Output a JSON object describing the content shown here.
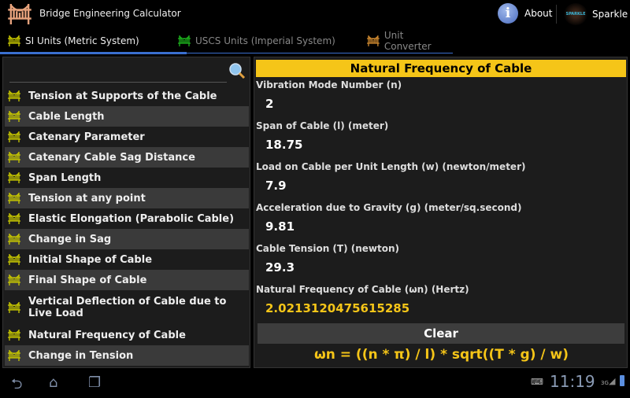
{
  "app": {
    "title": "Bridge Engineering Calculator",
    "about": "About",
    "sparkle": "Sparkle",
    "sparkle_logo": "SPARKLE"
  },
  "tabs": [
    {
      "label": "SI Units (Metric System)",
      "active": true,
      "icon_color": "#c8c800"
    },
    {
      "label": "USCS Units (Imperial System)",
      "active": false,
      "icon_color": "#1db31d"
    },
    {
      "label": "Unit Converter",
      "active": false,
      "icon_color": "#d08a30"
    }
  ],
  "search": {
    "placeholder": ""
  },
  "list": [
    "Tension at Supports of the Cable",
    "Cable Length",
    "Catenary Parameter",
    "Catenary Cable Sag Distance",
    "Span Length",
    "Tension at any point",
    "Elastic Elongation (Parabolic Cable)",
    "Change in Sag",
    "Initial Shape of Cable",
    "Final Shape of Cable",
    "Vertical Deflection of Cable due to Live Load",
    "Natural Frequency of Cable",
    "Change in Tension"
  ],
  "calc": {
    "title": "Natural Frequency of Cable",
    "fields": [
      {
        "label": "Vibration Mode Number (n)",
        "value": "2"
      },
      {
        "label": "Span of Cable (l) (meter)",
        "value": "18.75"
      },
      {
        "label": "Load on Cable per Unit Length (w) (newton/meter)",
        "value": "7.9"
      },
      {
        "label": "Acceleration due to Gravity (g) (meter/sq.second)",
        "value": "9.81"
      },
      {
        "label": "Cable Tension (T) (newton)",
        "value": "29.3"
      }
    ],
    "result": {
      "label": "Natural Frequency of Cable (ωn) (Hertz)",
      "value": "2.0213120475615285"
    },
    "clear": "Clear",
    "formula": "ωn = ((n * π) / l) * sqrt((T * g) / w)"
  },
  "status": {
    "time": "11:19",
    "network": "3G"
  },
  "colors": {
    "accent": "#f5c518",
    "tab_indicator": "#3a6fcf"
  }
}
